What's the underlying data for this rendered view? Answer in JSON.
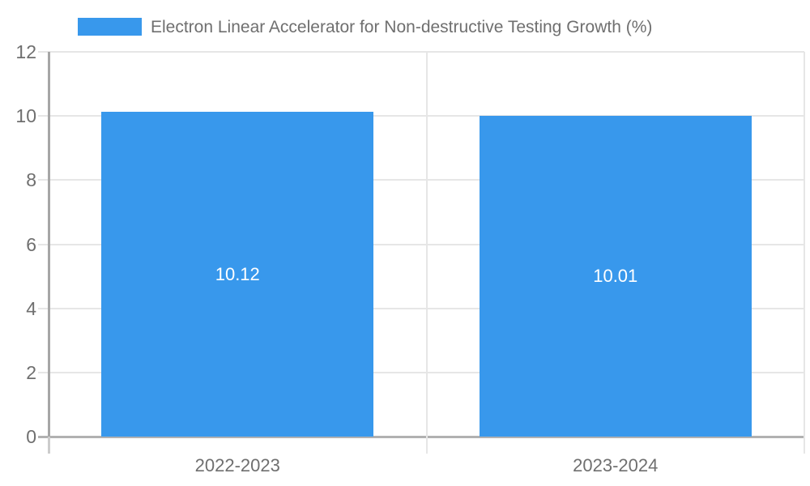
{
  "legend": {
    "label": "Electron Linear Accelerator for Non-destructive Testing Growth (%)"
  },
  "colors": {
    "bar": "#3898ec",
    "gridline": "#e6e6e6",
    "zero_axis_line": "#b1b1b1",
    "y_axis_line": "#a6a6a6",
    "axis_tick": "#cccccc",
    "axis_label_text": "#6f6f6f",
    "bar_value_text": "#ffffff",
    "background": "#ffffff"
  },
  "chart_data": {
    "type": "bar",
    "title": "Electron Linear Accelerator for Non-destructive Testing Growth (%)",
    "categories": [
      "2022-2023",
      "2023-2024"
    ],
    "values": [
      10.12,
      10.01
    ],
    "value_labels": [
      "10.12",
      "10.01"
    ],
    "y_ticks": [
      0,
      2,
      4,
      6,
      8,
      10,
      12
    ],
    "y_tick_labels": [
      "0",
      "2",
      "4",
      "6",
      "8",
      "10",
      "12"
    ],
    "ylim": [
      0,
      12
    ],
    "xlabel": "",
    "ylabel": "",
    "grid": true,
    "legend_position": "top-left",
    "value_labels_inside_bars": true
  }
}
